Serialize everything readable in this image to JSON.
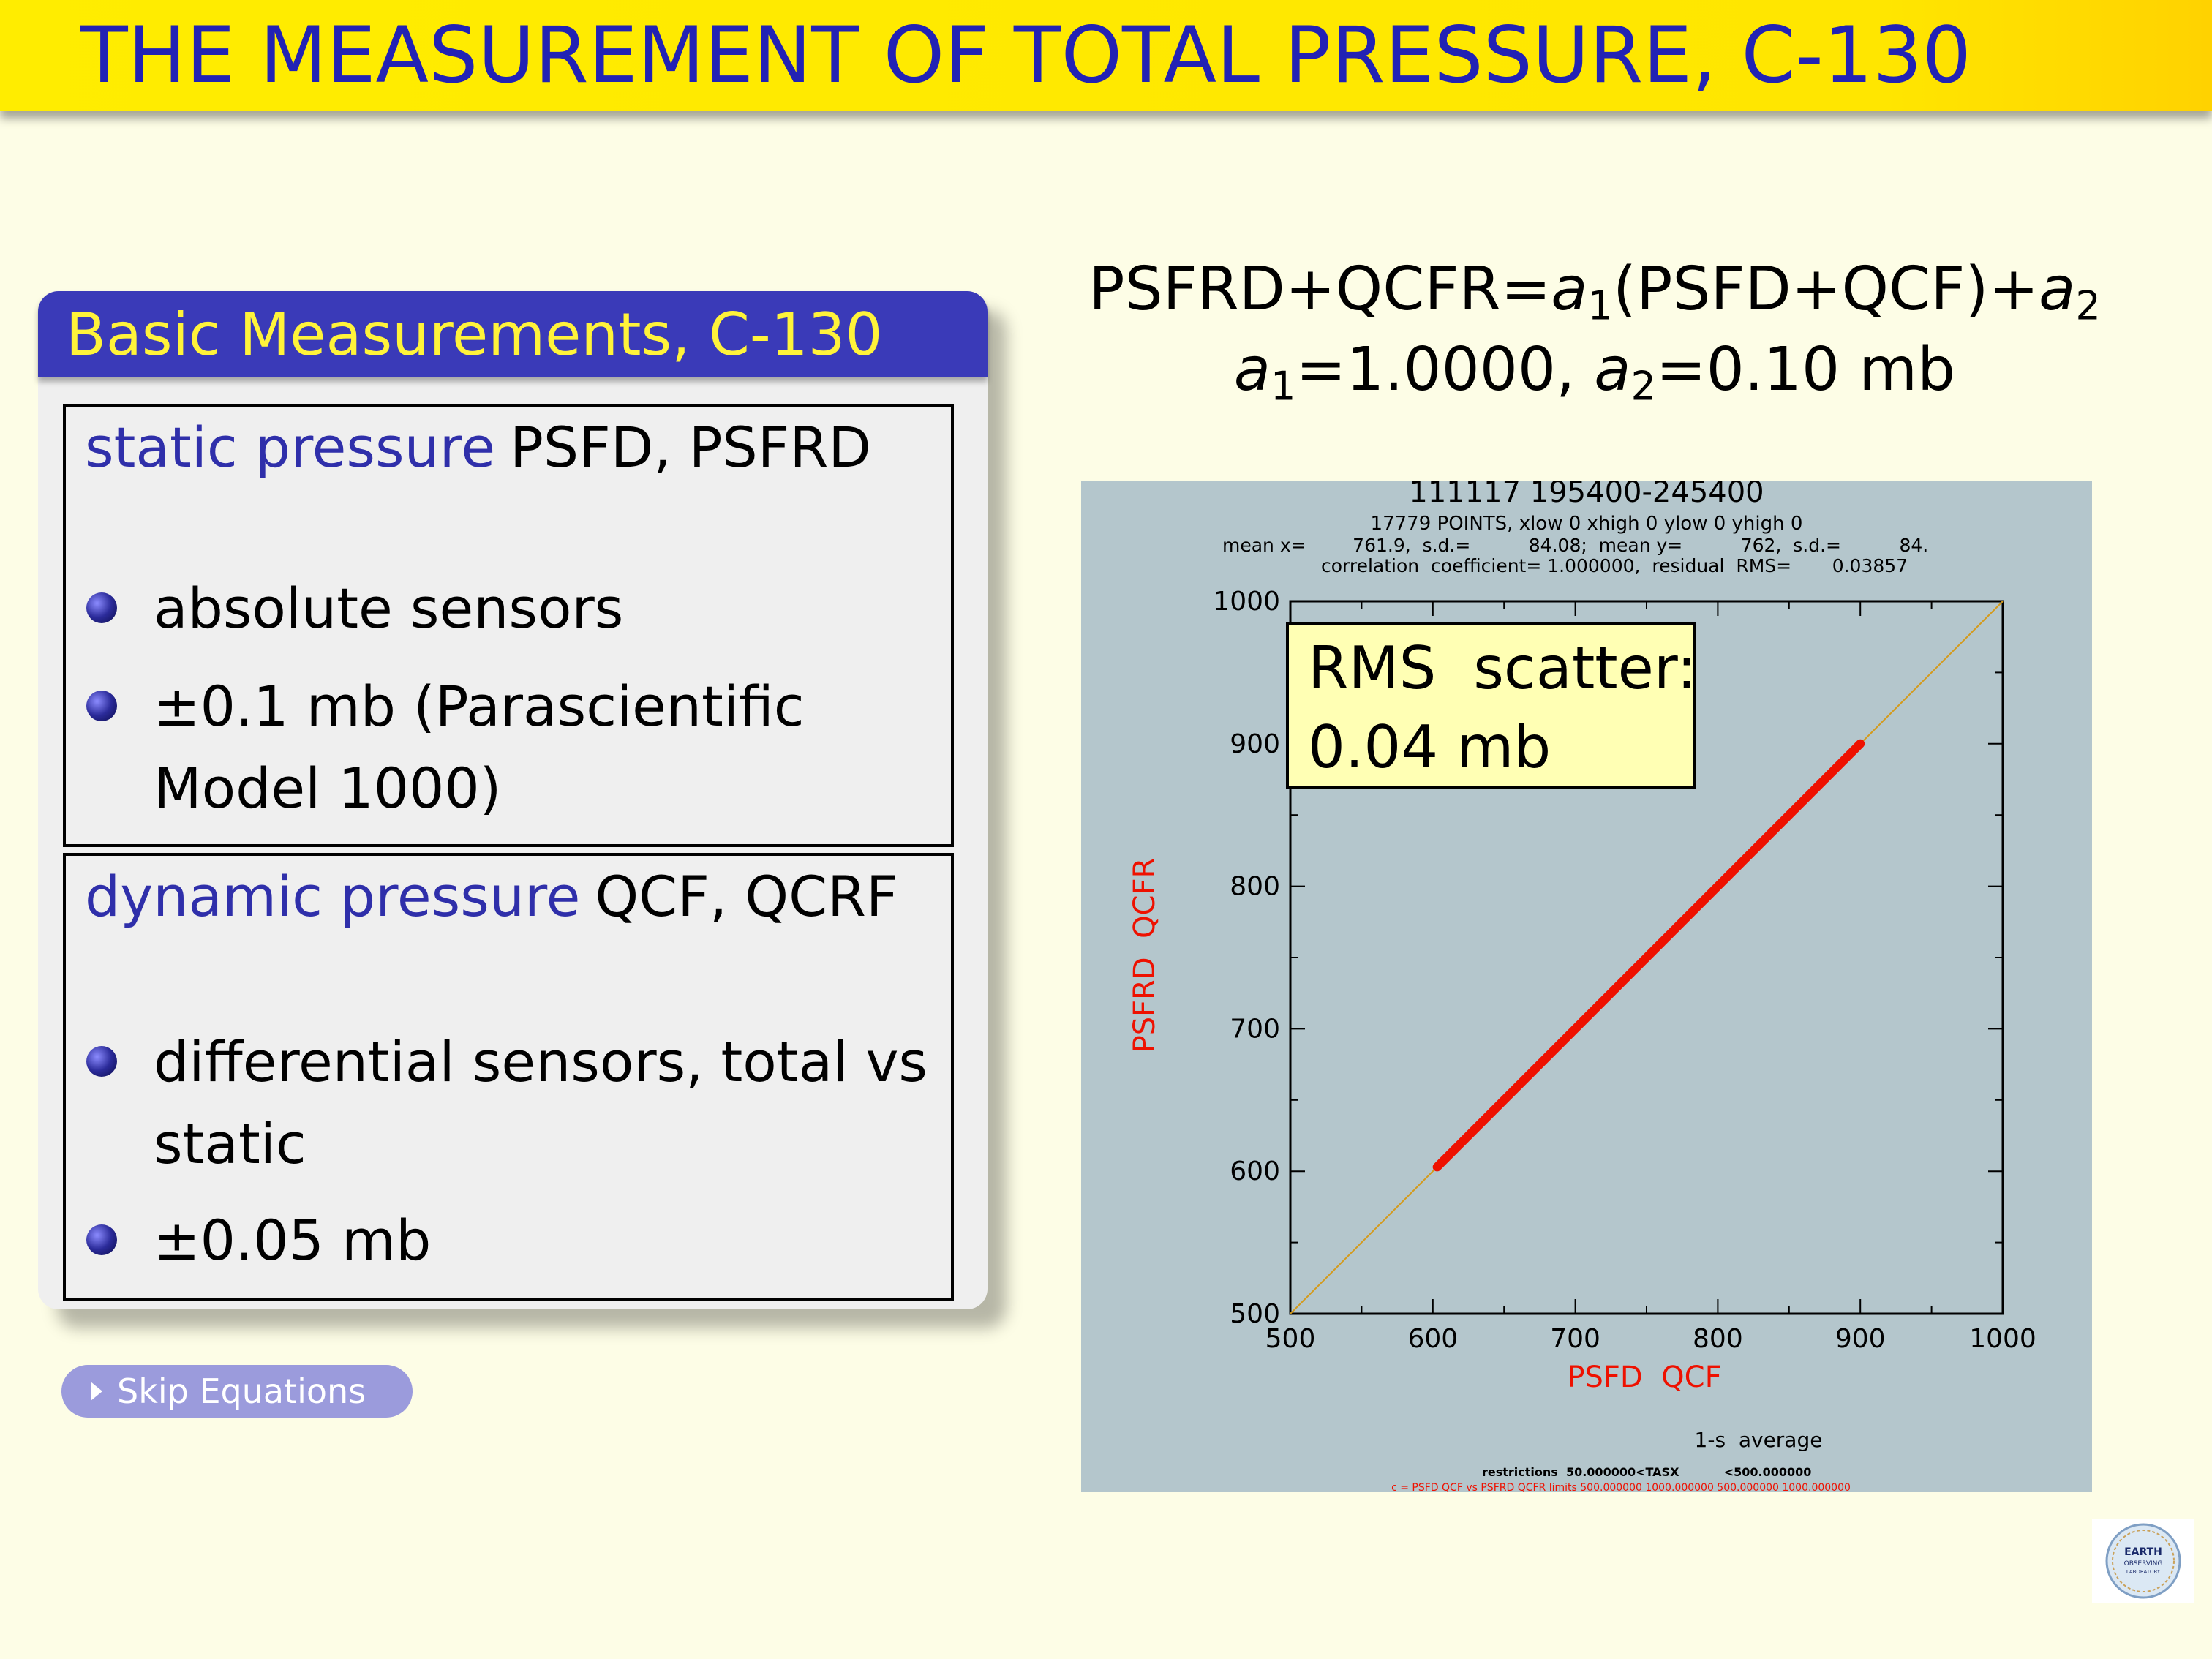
{
  "slide": {
    "title": "THE MEASUREMENT OF TOTAL PRESSURE, C-130",
    "block_title": "Basic Measurements, C-130",
    "static": {
      "heading": "static pressure",
      "codes": "PSFD, PSFRD",
      "bullet1": "absolute sensors",
      "bullet2": "±0.1 mb (Parascientific Model 1000)"
    },
    "dynamic": {
      "heading": "dynamic pressure",
      "codes": "QCF, QCRF",
      "bullet1": "differential sensors, total vs static",
      "bullet2": "±0.05 mb"
    },
    "skip_label": "Skip Equations",
    "equation": {
      "lhs": "PSFRD+QCFR=",
      "a": "a",
      "sub1": "1",
      "sub2": "2",
      "mid": "(PSFD+QCF)+",
      "line2_a1": "=1.0000, ",
      "line2_a2": "=0.10 mb"
    },
    "rms": {
      "line1": "RMS  scatter:",
      "line2": "0.04 mb"
    },
    "logo": {
      "text1": "EARTH",
      "text2": "OBSERVING",
      "text3": "LABORATORY"
    }
  },
  "chart_data": {
    "type": "scatter",
    "title": "111117  195400-245400",
    "subtitle": "17779 POINTS,  xlow 0  xhigh 0  ylow 0  yhigh 0",
    "stats_line1": "mean x=        761.9,  s.d.=          84.08;  mean y=          762,  s.d.=          84.",
    "stats_line2": "correlation  coefficient= 1.000000,  residual  RMS=       0.03857",
    "xlabel": "PSFD  QCF",
    "ylabel": "PSFRD  QCFR",
    "xlim": [
      500,
      1000
    ],
    "ylim": [
      500,
      1000
    ],
    "xticks": [
      "500",
      "600",
      "700",
      "800",
      "900",
      "1000"
    ],
    "yticks": [
      "500",
      "600",
      "700",
      "800",
      "900",
      "1000"
    ],
    "grid": false,
    "reference_line": [
      [
        500,
        500
      ],
      [
        1000,
        1000
      ]
    ],
    "series": [
      {
        "x_start": 603,
        "x_end": 900,
        "y_start": 603,
        "y_end": 900,
        "color": "#ee1100"
      }
    ],
    "footer_avg": "1-s  average",
    "footer_restrictions": "restrictions  50.000000<TASX           <500.000000",
    "footer_fit": "c = PSFD QCF vs PSFRD QCFR limits 500.000000 1000.000000 500.000000 1000.000000",
    "colors": {
      "background": "#b4c6cc",
      "axis": "#000000",
      "data": "#ee1100",
      "reference": "#d49a1a",
      "label": "#ee1100"
    }
  }
}
